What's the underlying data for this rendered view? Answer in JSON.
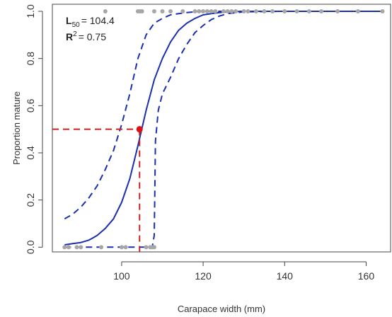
{
  "chart_data": {
    "type": "line",
    "xlabel": "Carapace width (mm)",
    "ylabel": "Proportion mature",
    "xlim": [
      83,
      166
    ],
    "ylim": [
      -0.02,
      1.03
    ],
    "xticks": [
      100,
      120,
      140,
      160
    ],
    "yticks": [
      0.0,
      0.2,
      0.4,
      0.6,
      0.8,
      1.0
    ],
    "xtick_labels": [
      "100",
      "120",
      "140",
      "160"
    ],
    "ytick_labels": [
      "0.0",
      "0.2",
      "0.4",
      "0.6",
      "0.8",
      "1.0"
    ],
    "grid": false,
    "colors": {
      "fit": "#1b2fae",
      "ci": "#1b2fae",
      "points": "#a6a6a6",
      "l50_marker": "#dd1111",
      "l50_guides": "#cc2222"
    },
    "annotations": {
      "l50_symbol": "L",
      "l50_subscript": "50",
      "l50_value": "= 104.4",
      "r2_symbol": "R",
      "r2_superscript": "2",
      "r2_value": "= 0.75"
    },
    "l50": {
      "x": 104.4,
      "y": 0.5
    },
    "series": [
      {
        "role": "fit",
        "style": "solid",
        "x": [
          86,
          88,
          90,
          92,
          94,
          96,
          98,
          100,
          102,
          104,
          106,
          108,
          110,
          112,
          114,
          116,
          118,
          120,
          122,
          124,
          126,
          130,
          140,
          150,
          160,
          164
        ],
        "values": [
          0.01,
          0.015,
          0.02,
          0.03,
          0.05,
          0.08,
          0.12,
          0.19,
          0.29,
          0.43,
          0.58,
          0.71,
          0.8,
          0.87,
          0.92,
          0.95,
          0.97,
          0.985,
          0.99,
          0.995,
          0.998,
          1.0,
          1.0,
          1.0,
          1.0,
          1.0
        ]
      },
      {
        "role": "upper-ci",
        "style": "dashed",
        "x": [
          86,
          88,
          90,
          92,
          94,
          96,
          98,
          100,
          102,
          104,
          106,
          108,
          110,
          112,
          114,
          116,
          118,
          120,
          122,
          124,
          130,
          140,
          150,
          160,
          164
        ],
        "values": [
          0.12,
          0.14,
          0.17,
          0.21,
          0.26,
          0.33,
          0.41,
          0.52,
          0.65,
          0.8,
          0.9,
          0.95,
          0.97,
          0.985,
          0.99,
          0.995,
          0.998,
          1.0,
          1.0,
          1.0,
          1.0,
          1.0,
          1.0,
          1.0,
          1.0
        ]
      },
      {
        "role": "lower-ci",
        "style": "dashed",
        "x": [
          86,
          90,
          95,
          100,
          105,
          107.5,
          108,
          108.3,
          109,
          110,
          112,
          114,
          116,
          118,
          120,
          122,
          124,
          126,
          130,
          140,
          150,
          160,
          164
        ],
        "values": [
          0.0,
          0.0,
          0.0,
          0.0,
          0.0,
          0.0,
          0.05,
          0.45,
          0.58,
          0.65,
          0.72,
          0.8,
          0.86,
          0.91,
          0.94,
          0.965,
          0.98,
          0.99,
          0.998,
          1.0,
          1.0,
          1.0,
          1.0
        ]
      }
    ],
    "observations": [
      {
        "x": 86,
        "y": 0
      },
      {
        "x": 87,
        "y": 0
      },
      {
        "x": 89,
        "y": 0
      },
      {
        "x": 90,
        "y": 0
      },
      {
        "x": 95,
        "y": 0
      },
      {
        "x": 100,
        "y": 0
      },
      {
        "x": 101,
        "y": 0
      },
      {
        "x": 106,
        "y": 0
      },
      {
        "x": 107,
        "y": 0
      },
      {
        "x": 107.5,
        "y": 0
      },
      {
        "x": 108,
        "y": 0
      },
      {
        "x": 96,
        "y": 1
      },
      {
        "x": 104,
        "y": 1
      },
      {
        "x": 104.5,
        "y": 1
      },
      {
        "x": 105,
        "y": 1
      },
      {
        "x": 108,
        "y": 1
      },
      {
        "x": 110,
        "y": 1
      },
      {
        "x": 112,
        "y": 1
      },
      {
        "x": 115,
        "y": 1
      },
      {
        "x": 118,
        "y": 1
      },
      {
        "x": 119,
        "y": 1
      },
      {
        "x": 120,
        "y": 1
      },
      {
        "x": 121,
        "y": 1
      },
      {
        "x": 122,
        "y": 1
      },
      {
        "x": 123,
        "y": 1
      },
      {
        "x": 125,
        "y": 1
      },
      {
        "x": 126,
        "y": 1
      },
      {
        "x": 127,
        "y": 1
      },
      {
        "x": 128,
        "y": 1
      },
      {
        "x": 130,
        "y": 1
      },
      {
        "x": 131,
        "y": 1
      },
      {
        "x": 133,
        "y": 1
      },
      {
        "x": 135,
        "y": 1
      },
      {
        "x": 137,
        "y": 1
      },
      {
        "x": 140,
        "y": 1
      },
      {
        "x": 143,
        "y": 1
      },
      {
        "x": 146,
        "y": 1
      },
      {
        "x": 149,
        "y": 1
      },
      {
        "x": 153,
        "y": 1
      },
      {
        "x": 158,
        "y": 1
      },
      {
        "x": 164,
        "y": 1
      }
    ]
  }
}
